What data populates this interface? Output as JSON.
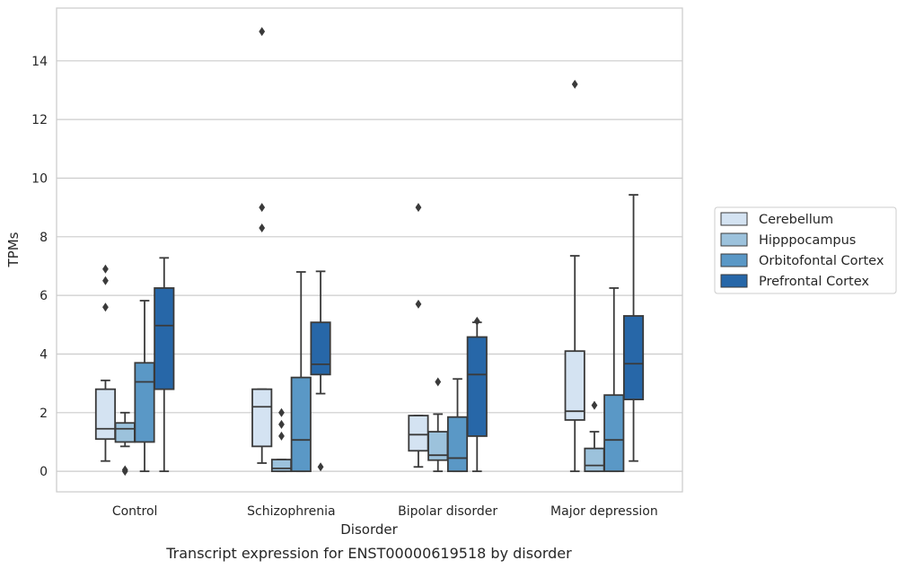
{
  "chart_data": {
    "type": "box",
    "title": "",
    "caption": "Transcript expression for ENST00000619518 by disorder",
    "xlabel": "Disorder",
    "ylabel": "TPMs",
    "ylim": [
      -0.7,
      15.8
    ],
    "yticks": [
      0,
      2,
      4,
      6,
      8,
      10,
      12,
      14
    ],
    "grid": "horizontal",
    "legend_position": "right",
    "categories": [
      "Control",
      "Schizophrenia",
      "Bipolar disorder",
      "Major depression"
    ],
    "series": [
      {
        "name": "Cerebellum",
        "color": "#d4e3f2",
        "boxes": [
          {
            "whisker_low": 0.35,
            "q1": 1.1,
            "median": 1.45,
            "q3": 2.8,
            "whisker_high": 3.1,
            "outliers": [
              5.6,
              6.5,
              6.9
            ]
          },
          {
            "whisker_low": 0.28,
            "q1": 0.85,
            "median": 2.2,
            "q3": 2.8,
            "whisker_high": 2.8,
            "outliers": [
              8.3,
              9.0,
              15.0
            ]
          },
          {
            "whisker_low": 0.15,
            "q1": 0.7,
            "median": 1.25,
            "q3": 1.9,
            "whisker_high": 1.9,
            "outliers": [
              5.7,
              9.0
            ]
          },
          {
            "whisker_low": 0.0,
            "q1": 1.75,
            "median": 2.05,
            "q3": 4.1,
            "whisker_high": 7.35,
            "outliers": [
              13.2
            ]
          }
        ]
      },
      {
        "name": "Hipppocampus",
        "color": "#9cc2dc",
        "boxes": [
          {
            "whisker_low": 0.85,
            "q1": 1.0,
            "median": 1.45,
            "q3": 1.65,
            "whisker_high": 2.0,
            "outliers": [
              0.0,
              0.05
            ]
          },
          {
            "whisker_low": 0.0,
            "q1": 0.0,
            "median": 0.1,
            "q3": 0.4,
            "whisker_high": 0.4,
            "outliers": [
              1.2,
              1.6,
              2.0
            ]
          },
          {
            "whisker_low": 0.0,
            "q1": 0.38,
            "median": 0.55,
            "q3": 1.35,
            "whisker_high": 1.95,
            "outliers": [
              3.05
            ]
          },
          {
            "whisker_low": 0.0,
            "q1": 0.0,
            "median": 0.2,
            "q3": 0.78,
            "whisker_high": 1.35,
            "outliers": [
              2.25
            ]
          }
        ]
      },
      {
        "name": "Orbitofontal Cortex",
        "color": "#5a98c6",
        "boxes": [
          {
            "whisker_low": 0.0,
            "q1": 1.0,
            "median": 3.05,
            "q3": 3.7,
            "whisker_high": 5.82,
            "outliers": []
          },
          {
            "whisker_low": 0.0,
            "q1": 0.0,
            "median": 1.07,
            "q3": 3.2,
            "whisker_high": 6.8,
            "outliers": []
          },
          {
            "whisker_low": 0.0,
            "q1": 0.0,
            "median": 0.45,
            "q3": 1.85,
            "whisker_high": 3.15,
            "outliers": []
          },
          {
            "whisker_low": 0.0,
            "q1": 0.0,
            "median": 1.07,
            "q3": 2.6,
            "whisker_high": 6.25,
            "outliers": []
          }
        ]
      },
      {
        "name": "Prefrontal Cortex",
        "color": "#2767a8",
        "boxes": [
          {
            "whisker_low": 0.0,
            "q1": 2.8,
            "median": 4.97,
            "q3": 6.25,
            "whisker_high": 7.28,
            "outliers": []
          },
          {
            "whisker_low": 2.65,
            "q1": 3.3,
            "median": 3.65,
            "q3": 5.08,
            "whisker_high": 6.82,
            "outliers": [
              0.15
            ]
          },
          {
            "whisker_low": 0.0,
            "q1": 1.2,
            "median": 3.3,
            "q3": 4.58,
            "whisker_high": 5.08,
            "outliers": [
              5.12
            ]
          },
          {
            "whisker_low": 0.35,
            "q1": 2.45,
            "median": 3.67,
            "q3": 5.3,
            "whisker_high": 9.43,
            "outliers": []
          }
        ]
      }
    ]
  }
}
